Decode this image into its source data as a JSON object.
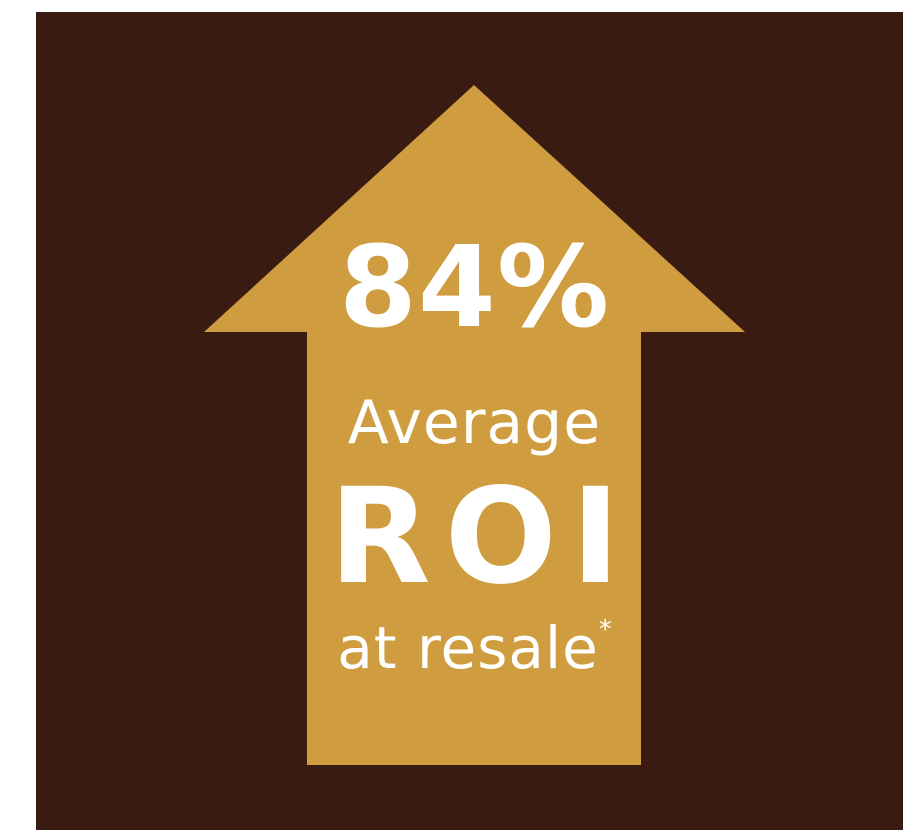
{
  "infographic": {
    "stat_value": "84%",
    "stat_line": "Average",
    "metric": "ROI",
    "context": "at resale",
    "footnote_marker": "*"
  },
  "colors": {
    "background": "#391b12",
    "arrow": "#cf9d40",
    "text": "#ffffff"
  },
  "icons": {
    "arrow": "up-arrow-icon"
  }
}
